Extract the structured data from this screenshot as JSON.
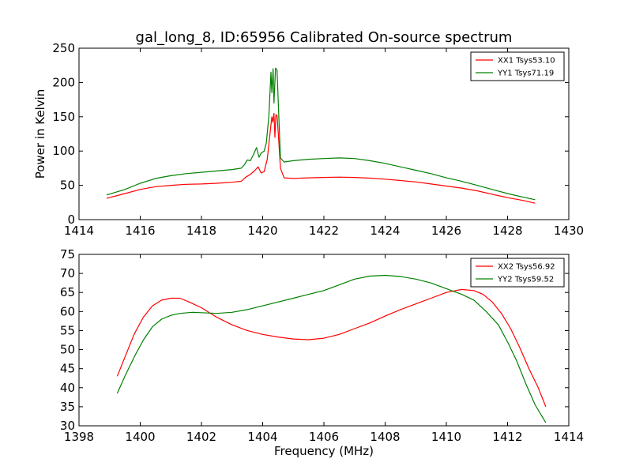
{
  "title": "gal_long_8, ID:65956 Calibrated On-source spectrum",
  "colors": {
    "xx": "#ff0000",
    "yy": "#008000",
    "axis": "#000000"
  },
  "chart_data": [
    {
      "type": "line",
      "ylabel": "Power in Kelvin",
      "xlabel": "",
      "xlim": [
        1414,
        1430
      ],
      "ylim": [
        0,
        250
      ],
      "xticks": [
        "1414",
        "1416",
        "1418",
        "1420",
        "1422",
        "1424",
        "1426",
        "1428",
        "1430"
      ],
      "yticks": [
        "0",
        "50",
        "100",
        "150",
        "200",
        "250"
      ],
      "legend": "top-right",
      "series": [
        {
          "name": "XX1 Tsys53.10",
          "color": "#ff0000",
          "points": [
            [
              1414.9,
              31
            ],
            [
              1415.5,
              38
            ],
            [
              1416,
              44
            ],
            [
              1416.5,
              48
            ],
            [
              1417,
              50
            ],
            [
              1417.5,
              51.5
            ],
            [
              1418,
              52
            ],
            [
              1418.5,
              53
            ],
            [
              1419,
              54.5
            ],
            [
              1419.3,
              56
            ],
            [
              1419.45,
              62
            ],
            [
              1419.6,
              66
            ],
            [
              1419.75,
              72
            ],
            [
              1419.85,
              77
            ],
            [
              1419.95,
              68
            ],
            [
              1420.05,
              70
            ],
            [
              1420.15,
              88
            ],
            [
              1420.25,
              130
            ],
            [
              1420.3,
              150
            ],
            [
              1420.33,
              142
            ],
            [
              1420.37,
              155
            ],
            [
              1420.4,
              120
            ],
            [
              1420.43,
              153
            ],
            [
              1420.47,
              152
            ],
            [
              1420.52,
              120
            ],
            [
              1420.58,
              75
            ],
            [
              1420.7,
              61
            ],
            [
              1421,
              60
            ],
            [
              1421.5,
              61
            ],
            [
              1422,
              61.5
            ],
            [
              1422.5,
              62
            ],
            [
              1423,
              61.5
            ],
            [
              1423.5,
              60.5
            ],
            [
              1424,
              59
            ],
            [
              1424.5,
              57
            ],
            [
              1425,
              55
            ],
            [
              1425.5,
              52
            ],
            [
              1426,
              49
            ],
            [
              1426.5,
              46
            ],
            [
              1427,
              42
            ],
            [
              1427.5,
              37
            ],
            [
              1428,
              32
            ],
            [
              1428.5,
              28
            ],
            [
              1428.9,
              24
            ]
          ]
        },
        {
          "name": "YY1 Tsys71.19",
          "color": "#008000",
          "points": [
            [
              1414.9,
              36
            ],
            [
              1415.5,
              44
            ],
            [
              1416,
              53
            ],
            [
              1416.5,
              60
            ],
            [
              1417,
              64
            ],
            [
              1417.5,
              67
            ],
            [
              1418,
              69
            ],
            [
              1418.5,
              71
            ],
            [
              1419,
              73
            ],
            [
              1419.3,
              75
            ],
            [
              1419.4,
              80
            ],
            [
              1419.5,
              87
            ],
            [
              1419.6,
              86
            ],
            [
              1419.7,
              95
            ],
            [
              1419.8,
              105
            ],
            [
              1419.88,
              91
            ],
            [
              1419.95,
              97
            ],
            [
              1420.05,
              100
            ],
            [
              1420.12,
              112
            ],
            [
              1420.2,
              150
            ],
            [
              1420.27,
              215
            ],
            [
              1420.3,
              185
            ],
            [
              1420.34,
              220
            ],
            [
              1420.37,
              170
            ],
            [
              1420.42,
              221
            ],
            [
              1420.47,
              218
            ],
            [
              1420.52,
              160
            ],
            [
              1420.58,
              90
            ],
            [
              1420.7,
              84
            ],
            [
              1421,
              86
            ],
            [
              1421.5,
              88
            ],
            [
              1422,
              89
            ],
            [
              1422.5,
              90
            ],
            [
              1423,
              89
            ],
            [
              1423.5,
              86
            ],
            [
              1424,
              82
            ],
            [
              1424.5,
              77
            ],
            [
              1425,
              72
            ],
            [
              1425.5,
              67
            ],
            [
              1426,
              61
            ],
            [
              1426.5,
              56
            ],
            [
              1427,
              50
            ],
            [
              1427.5,
              44
            ],
            [
              1428,
              38
            ],
            [
              1428.5,
              33
            ],
            [
              1428.9,
              29
            ]
          ]
        }
      ]
    },
    {
      "type": "line",
      "ylabel": "",
      "xlabel": "Frequency (MHz)",
      "xlim": [
        1398,
        1414
      ],
      "ylim": [
        30,
        75
      ],
      "xticks": [
        "1398",
        "1400",
        "1402",
        "1404",
        "1406",
        "1408",
        "1410",
        "1412",
        "1414"
      ],
      "yticks": [
        "30",
        "35",
        "40",
        "45",
        "50",
        "55",
        "60",
        "65",
        "70",
        "75"
      ],
      "legend": "top-right",
      "series": [
        {
          "name": "XX2 Tsys56.92",
          "color": "#ff0000",
          "points": [
            [
              1399.25,
              43
            ],
            [
              1399.5,
              48
            ],
            [
              1399.8,
              54
            ],
            [
              1400.1,
              58.5
            ],
            [
              1400.4,
              61.5
            ],
            [
              1400.7,
              63
            ],
            [
              1401,
              63.5
            ],
            [
              1401.3,
              63.5
            ],
            [
              1401.6,
              62.5
            ],
            [
              1402,
              61
            ],
            [
              1402.5,
              58.5
            ],
            [
              1403,
              56.5
            ],
            [
              1403.5,
              55
            ],
            [
              1404,
              54
            ],
            [
              1404.5,
              53.3
            ],
            [
              1405,
              52.8
            ],
            [
              1405.5,
              52.6
            ],
            [
              1406,
              53
            ],
            [
              1406.5,
              54
            ],
            [
              1407,
              55.5
            ],
            [
              1407.5,
              57
            ],
            [
              1408,
              58.8
            ],
            [
              1408.5,
              60.5
            ],
            [
              1409,
              62
            ],
            [
              1409.5,
              63.5
            ],
            [
              1410,
              65
            ],
            [
              1410.5,
              65.8
            ],
            [
              1410.9,
              65.5
            ],
            [
              1411.2,
              64.5
            ],
            [
              1411.5,
              62.5
            ],
            [
              1411.8,
              59.5
            ],
            [
              1412.1,
              55.5
            ],
            [
              1412.4,
              50.5
            ],
            [
              1412.7,
              45
            ],
            [
              1413,
              40
            ],
            [
              1413.25,
              35
            ]
          ]
        },
        {
          "name": "YY2 Tsys59.52",
          "color": "#008000",
          "points": [
            [
              1399.25,
              38.5
            ],
            [
              1399.5,
              43
            ],
            [
              1399.8,
              48
            ],
            [
              1400.1,
              52.5
            ],
            [
              1400.4,
              56
            ],
            [
              1400.7,
              58
            ],
            [
              1401,
              59
            ],
            [
              1401.3,
              59.5
            ],
            [
              1401.7,
              59.8
            ],
            [
              1402,
              59.7
            ],
            [
              1402.5,
              59.5
            ],
            [
              1403,
              59.8
            ],
            [
              1403.5,
              60.5
            ],
            [
              1404,
              61.5
            ],
            [
              1404.5,
              62.5
            ],
            [
              1405,
              63.5
            ],
            [
              1405.5,
              64.5
            ],
            [
              1406,
              65.5
            ],
            [
              1406.5,
              67
            ],
            [
              1407,
              68.5
            ],
            [
              1407.5,
              69.3
            ],
            [
              1408,
              69.5
            ],
            [
              1408.5,
              69.2
            ],
            [
              1409,
              68.5
            ],
            [
              1409.5,
              67.5
            ],
            [
              1410,
              66
            ],
            [
              1410.5,
              64.5
            ],
            [
              1410.9,
              63
            ],
            [
              1411.3,
              60
            ],
            [
              1411.7,
              56.5
            ],
            [
              1412,
              52
            ],
            [
              1412.3,
              47
            ],
            [
              1412.6,
              41
            ],
            [
              1412.9,
              35.5
            ],
            [
              1413.25,
              30.8
            ]
          ]
        }
      ]
    }
  ]
}
